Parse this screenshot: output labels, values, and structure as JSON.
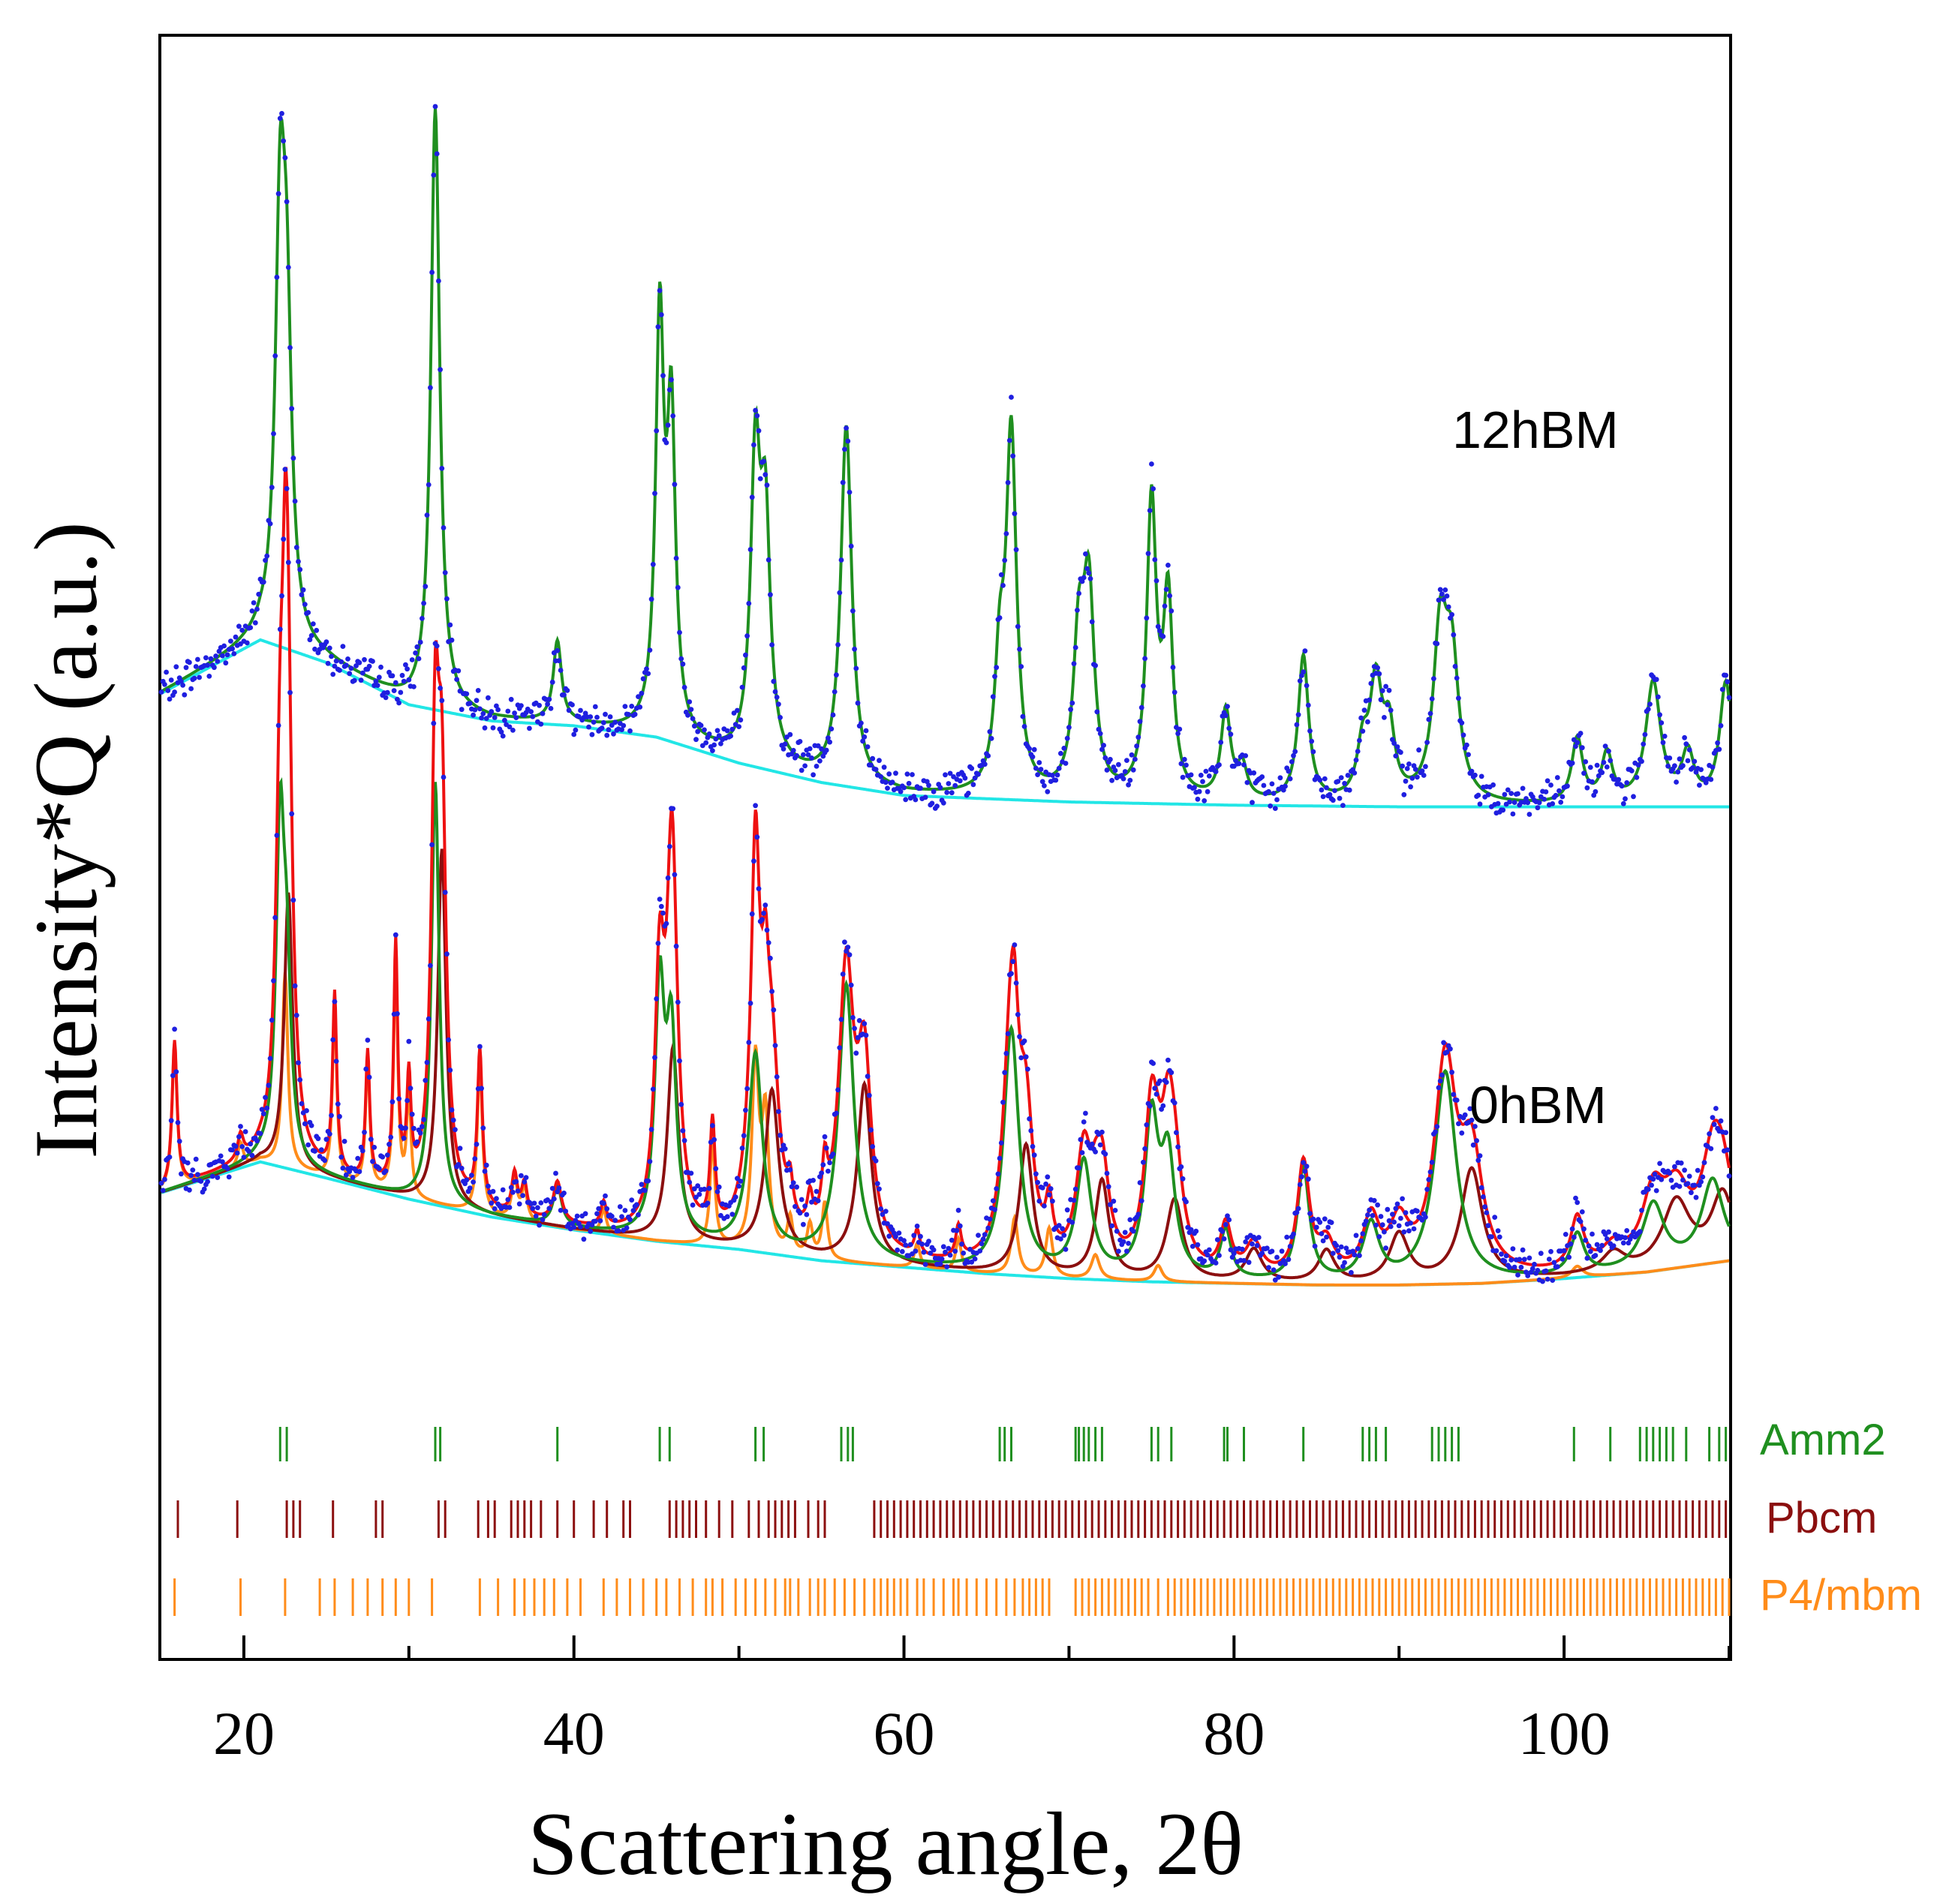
{
  "chart_data": {
    "type": "line",
    "title": "",
    "xlabel": "Scattering angle, 2θ",
    "ylabel": "Intensity*Q (a.u.)",
    "xlim": [
      15,
      110
    ],
    "ylim": [
      0,
      1
    ],
    "x_ticks": [
      20,
      40,
      60,
      80,
      100
    ],
    "y_ticks": [],
    "grid": false,
    "legend": "none",
    "colors": {
      "observed": "#1f1fe0",
      "background": "#22e6e6",
      "amm2": "#1f8f1f",
      "pbcm": "#8b0f0f",
      "p4mbm": "#ff8c1a",
      "total": "#ee1111"
    },
    "patterns": [
      {
        "label": "12hBM",
        "baseline": 0.525,
        "background_points": [
          [
            15,
            0.595
          ],
          [
            21,
            0.628
          ],
          [
            25,
            0.614
          ],
          [
            30,
            0.588
          ],
          [
            35,
            0.578
          ],
          [
            40,
            0.575
          ],
          [
            45,
            0.568
          ],
          [
            50,
            0.552
          ],
          [
            55,
            0.54
          ],
          [
            60,
            0.532
          ],
          [
            70,
            0.528
          ],
          [
            80,
            0.526
          ],
          [
            90,
            0.525
          ],
          [
            110,
            0.525
          ]
        ],
        "peaks": [
          [
            22.2,
            0.245,
            0.35
          ],
          [
            22.6,
            0.17,
            0.35
          ],
          [
            31.6,
            0.37,
            0.32
          ],
          [
            39.0,
            0.05,
            0.3
          ],
          [
            45.2,
            0.25,
            0.3
          ],
          [
            45.9,
            0.19,
            0.3
          ],
          [
            51.0,
            0.18,
            0.35
          ],
          [
            51.6,
            0.14,
            0.35
          ],
          [
            56.5,
            0.22,
            0.4
          ],
          [
            65.8,
            0.07,
            0.35
          ],
          [
            66.5,
            0.22,
            0.38
          ],
          [
            70.6,
            0.09,
            0.4
          ],
          [
            71.2,
            0.12,
            0.4
          ],
          [
            75.0,
            0.18,
            0.35
          ],
          [
            76.0,
            0.12,
            0.35
          ],
          [
            79.5,
            0.055,
            0.35
          ],
          [
            80.5,
            0.02,
            0.35
          ],
          [
            84.2,
            0.09,
            0.38
          ],
          [
            87.8,
            0.03,
            0.4
          ],
          [
            88.6,
            0.07,
            0.45
          ],
          [
            89.4,
            0.04,
            0.4
          ],
          [
            92.5,
            0.1,
            0.5
          ],
          [
            93.2,
            0.08,
            0.5
          ],
          [
            100.8,
            0.04,
            0.4
          ],
          [
            102.6,
            0.03,
            0.4
          ],
          [
            105.4,
            0.075,
            0.55
          ],
          [
            107.5,
            0.03,
            0.45
          ],
          [
            109.8,
            0.075,
            0.45
          ]
        ]
      },
      {
        "label": "0hBM",
        "baseline": 0.23,
        "background_points": [
          [
            15,
            0.287
          ],
          [
            21,
            0.306
          ],
          [
            25,
            0.296
          ],
          [
            30,
            0.283
          ],
          [
            35,
            0.272
          ],
          [
            40,
            0.264
          ],
          [
            45,
            0.257
          ],
          [
            50,
            0.252
          ],
          [
            55,
            0.245
          ],
          [
            60,
            0.241
          ],
          [
            65,
            0.237
          ],
          [
            70,
            0.234
          ],
          [
            75,
            0.232
          ],
          [
            80,
            0.231
          ],
          [
            85,
            0.23
          ],
          [
            90,
            0.23
          ],
          [
            95,
            0.231
          ],
          [
            100,
            0.234
          ],
          [
            105,
            0.238
          ],
          [
            110,
            0.245
          ]
        ],
        "components": [
          {
            "name": "Amm2",
            "color_key": "amm2",
            "peaks": [
              [
                22.2,
                0.2,
                0.3
              ],
              [
                22.6,
                0.1,
                0.3
              ],
              [
                31.6,
                0.26,
                0.28
              ],
              [
                39.0,
                0.025,
                0.3
              ],
              [
                45.2,
                0.15,
                0.35
              ],
              [
                45.9,
                0.12,
                0.35
              ],
              [
                51.0,
                0.12,
                0.5
              ],
              [
                56.5,
                0.17,
                0.55
              ],
              [
                66.5,
                0.15,
                0.55
              ],
              [
                70.9,
                0.07,
                0.55
              ],
              [
                75.0,
                0.095,
                0.5
              ],
              [
                76.0,
                0.07,
                0.5
              ],
              [
                79.5,
                0.03,
                0.4
              ],
              [
                84.2,
                0.07,
                0.45
              ],
              [
                88.3,
                0.035,
                0.6
              ],
              [
                92.8,
                0.13,
                0.8
              ],
              [
                100.8,
                0.025,
                0.5
              ],
              [
                105.4,
                0.04,
                0.8
              ],
              [
                109.0,
                0.05,
                0.8
              ]
            ]
          },
          {
            "name": "Pbcm",
            "color_key": "pbcm",
            "peaks": [
              [
                22.7,
                0.17,
                0.3
              ],
              [
                32.0,
                0.22,
                0.3
              ],
              [
                46.0,
                0.12,
                0.4
              ],
              [
                52.0,
                0.1,
                0.5
              ],
              [
                57.6,
                0.11,
                0.5
              ],
              [
                67.4,
                0.08,
                0.5
              ],
              [
                72.0,
                0.06,
                0.5
              ],
              [
                76.4,
                0.05,
                0.6
              ],
              [
                81.2,
                0.02,
                0.6
              ],
              [
                85.6,
                0.02,
                0.6
              ],
              [
                90.0,
                0.03,
                0.7
              ],
              [
                94.4,
                0.07,
                0.8
              ],
              [
                103.0,
                0.012,
                0.8
              ],
              [
                106.8,
                0.04,
                1.0
              ],
              [
                109.6,
                0.04,
                0.8
              ]
            ]
          },
          {
            "name": "P4/mbm",
            "color_key": "p4mbm",
            "peaks": [
              [
                15.8,
                0.09,
                0.18
              ],
              [
                19.8,
                0.015,
                0.2
              ],
              [
                22.5,
                0.12,
                0.2
              ],
              [
                25.5,
                0.11,
                0.15
              ],
              [
                27.5,
                0.08,
                0.15
              ],
              [
                29.2,
                0.15,
                0.15
              ],
              [
                30.0,
                0.065,
                0.15
              ],
              [
                34.3,
                0.095,
                0.18
              ],
              [
                36.4,
                0.025,
                0.2
              ],
              [
                37.0,
                0.02,
                0.2
              ],
              [
                41.8,
                0.015,
                0.2
              ],
              [
                48.4,
                0.065,
                0.18
              ],
              [
                51.0,
                0.115,
                0.25
              ],
              [
                51.6,
                0.08,
                0.25
              ],
              [
                53.1,
                0.022,
                0.2
              ],
              [
                54.3,
                0.02,
                0.2
              ],
              [
                55.2,
                0.035,
                0.2
              ],
              [
                60.8,
                0.015,
                0.2
              ],
              [
                63.3,
                0.02,
                0.2
              ],
              [
                66.7,
                0.035,
                0.25
              ],
              [
                68.8,
                0.03,
                0.25
              ],
              [
                71.6,
                0.015,
                0.3
              ],
              [
                75.4,
                0.01,
                0.3
              ],
              [
                100.8,
                0.007,
                0.4
              ]
            ]
          }
        ]
      }
    ],
    "tick_marks": [
      {
        "phase": "Amm2",
        "color_key": "amm2",
        "positions": [
          22.2,
          22.6,
          31.6,
          31.9,
          39.0,
          45.2,
          45.8,
          51.0,
          51.5,
          56.2,
          56.6,
          56.9,
          65.8,
          66.1,
          66.5,
          70.4,
          70.6,
          70.9,
          71.2,
          71.6,
          72.0,
          75.0,
          75.4,
          76.2,
          79.4,
          79.6,
          80.6,
          84.2,
          87.8,
          88.2,
          88.6,
          89.2,
          92.0,
          92.4,
          92.8,
          93.2,
          93.6,
          100.6,
          102.8,
          104.6,
          105.0,
          105.4,
          105.8,
          106.2,
          106.6,
          107.4,
          108.8,
          109.4,
          109.8
        ]
      },
      {
        "phase": "Pbcm",
        "color_key": "pbcm",
        "positions": [
          16.0,
          19.6,
          22.6,
          23.0,
          23.4,
          25.4,
          28.0,
          28.4,
          31.8,
          32.2,
          34.2,
          34.8,
          35.2,
          36.2,
          36.6,
          37.0,
          37.4,
          38.0,
          39.0,
          40.0,
          41.2,
          42.0,
          43.0,
          43.4,
          45.8,
          46.2,
          46.6,
          47.0,
          47.4,
          48.0,
          48.8,
          49.6,
          50.6,
          51.2,
          51.8,
          52.2,
          52.6,
          53.0,
          53.4,
          54.2,
          54.8,
          55.2,
          58.2,
          58.6,
          59.0,
          59.4,
          59.8,
          60.2,
          60.6,
          61.0,
          61.4,
          61.8,
          62.2,
          62.6,
          63.0,
          63.4,
          63.8,
          64.2,
          64.6,
          65.0,
          65.4,
          65.8,
          66.2,
          66.6,
          67.0,
          67.4,
          67.8,
          68.2,
          68.6,
          69.0,
          69.4,
          69.8,
          70.2,
          70.6,
          71.0,
          71.4,
          71.8,
          72.2,
          72.6,
          73.0,
          73.4,
          73.8,
          74.2,
          74.6,
          75.0,
          75.4,
          75.8,
          76.2,
          76.6,
          77.0,
          77.4,
          77.8,
          78.2,
          78.6,
          79.0,
          79.4,
          79.8,
          80.2,
          80.6,
          81.0,
          81.4,
          81.8,
          82.2,
          82.6,
          83.0,
          83.4,
          83.8,
          84.2,
          84.6,
          85.0,
          85.4,
          85.8,
          86.2,
          86.6,
          87.0,
          87.4,
          87.8,
          88.2,
          88.6,
          89.0,
          89.4,
          89.8,
          90.2,
          90.6,
          91.0,
          91.4,
          91.8,
          92.2,
          92.6,
          93.0,
          93.4,
          93.8,
          94.2,
          94.6,
          95.0,
          95.4,
          95.8,
          96.2,
          96.6,
          97.0,
          97.4,
          97.8,
          98.2,
          98.6,
          99.0,
          99.4,
          99.8,
          100.2,
          100.6,
          101.0,
          101.4,
          101.8,
          102.2,
          102.6,
          103.0,
          103.4,
          103.8,
          104.2,
          104.6,
          105.0,
          105.4,
          105.8,
          106.2,
          106.6,
          107.0,
          107.4,
          107.8,
          108.2,
          108.6,
          109.0,
          109.4,
          109.8
        ]
      },
      {
        "phase": "P4/mbm",
        "color_key": "p4mbm",
        "positions": [
          15.8,
          19.8,
          22.5,
          24.6,
          25.5,
          26.6,
          27.5,
          28.4,
          29.2,
          30.0,
          31.4,
          34.3,
          35.4,
          36.4,
          37.0,
          37.6,
          38.2,
          38.8,
          39.6,
          40.4,
          41.8,
          42.6,
          43.4,
          44.2,
          45.0,
          45.6,
          46.4,
          47.2,
          48.0,
          48.4,
          49.0,
          49.8,
          50.4,
          51.0,
          51.6,
          52.2,
          52.8,
          53.1,
          53.6,
          54.3,
          54.8,
          55.2,
          55.8,
          56.4,
          57.0,
          57.6,
          58.2,
          58.6,
          59.0,
          59.4,
          59.8,
          60.2,
          60.8,
          61.2,
          61.8,
          62.4,
          63.0,
          63.3,
          63.8,
          64.4,
          65.0,
          65.6,
          66.2,
          66.7,
          67.2,
          67.6,
          68.0,
          68.4,
          68.8,
          70.4,
          70.8,
          71.2,
          71.6,
          72.0,
          72.4,
          72.8,
          73.2,
          73.6,
          74.0,
          74.4,
          74.8,
          75.4,
          76.0,
          76.4,
          76.8,
          77.2,
          77.6,
          78.0,
          78.4,
          78.8,
          79.2,
          79.6,
          80.0,
          80.4,
          80.8,
          81.2,
          81.6,
          82.0,
          82.4,
          82.8,
          83.2,
          83.6,
          84.0,
          84.4,
          84.8,
          85.2,
          85.6,
          86.0,
          86.4,
          86.8,
          87.2,
          87.6,
          88.0,
          88.4,
          88.8,
          89.2,
          89.6,
          90.0,
          90.4,
          90.8,
          91.2,
          91.6,
          92.0,
          92.4,
          92.8,
          93.2,
          93.6,
          94.0,
          94.4,
          94.8,
          95.2,
          95.6,
          96.0,
          96.4,
          96.8,
          97.2,
          97.6,
          98.0,
          98.4,
          98.8,
          99.2,
          99.6,
          100.0,
          100.4,
          100.8,
          101.2,
          101.6,
          102.0,
          102.4,
          102.8,
          103.2,
          103.6,
          104.0,
          104.4,
          104.8,
          105.2,
          105.6,
          106.0,
          106.4,
          106.8,
          107.2,
          107.6,
          108.0,
          108.4,
          108.8,
          109.2,
          109.6,
          110.0
        ]
      }
    ]
  }
}
